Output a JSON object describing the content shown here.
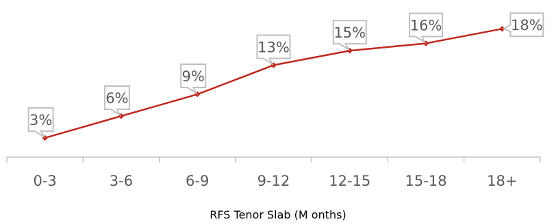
{
  "chart_data": {
    "type": "line",
    "title": "",
    "xlabel": "RFS Tenor Slab (M onths)",
    "ylabel": "",
    "categories": [
      "0-3",
      "3-6",
      "6-9",
      "9-12",
      "12-15",
      "15-18",
      "18+"
    ],
    "series": [
      {
        "values": [
          3,
          6,
          9,
          13,
          15,
          16,
          18
        ],
        "labels": [
          "3%",
          "6%",
          "9%",
          "13%",
          "15%",
          "16%",
          "18%"
        ],
        "color": "#c0281c"
      }
    ],
    "ylim": [
      0,
      20
    ],
    "grid": false,
    "legend": "none",
    "label_style": "callout",
    "callout_border_color": "#bfbfbf",
    "axis_color": "#a6a6a6",
    "text_color": "#595959"
  }
}
